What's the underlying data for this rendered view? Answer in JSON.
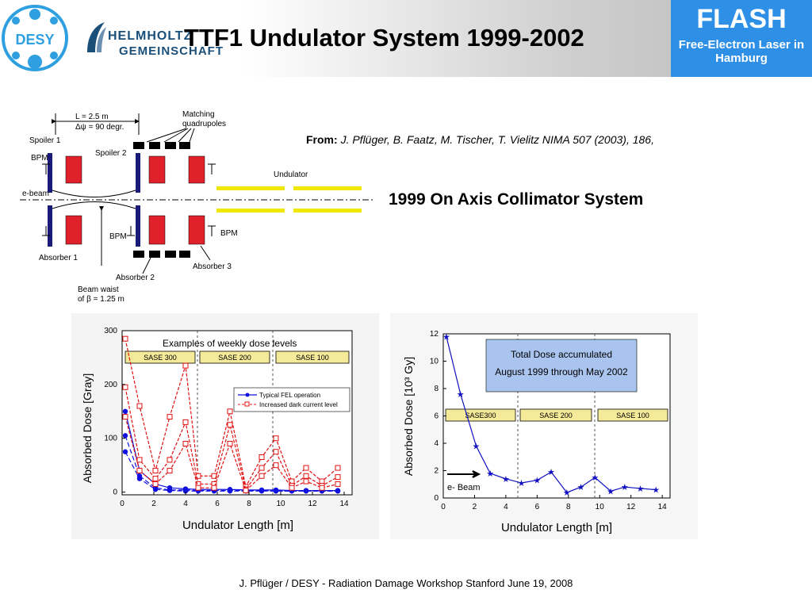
{
  "header": {
    "title": "TTF1 Undulator System 1999-2002",
    "desy_logo": "DESY",
    "helmholtz_line1": "HELMHOLTZ",
    "helmholtz_line2": "GEMEINSCHAFT",
    "flash_name": "FLASH",
    "flash_sub": "Free-Electron Laser in Hamburg",
    "colors": {
      "flash_bg": "#2e8fe6",
      "desy_blue": "#2e9fe0"
    }
  },
  "citation": {
    "label": "From:",
    "text": "J. Pflüger, B. Faatz, M. Tischer, T. Vielitz NIMA 507 (2003), 186,"
  },
  "subtitle": "1999 On Axis Collimator System",
  "schematic": {
    "length_label": "L = 2.5 m",
    "phase_label": "Δψ = 90 degr.",
    "matching_label_1": "Matching",
    "matching_label_2": "quadrupoles",
    "spoiler1": "Spoiler 1",
    "spoiler2": "Spoiler 2",
    "bpm": "BPM",
    "ebeam": "e-beam",
    "undulator": "Undulator",
    "absorber1": "Absorber 1",
    "absorber2": "Absorber 2",
    "absorber3": "Absorber 3",
    "waist_1": "Beam waist",
    "waist_2": "of β = 1.25 m"
  },
  "chart_data": [
    {
      "type": "line",
      "title": "Examples of weekly dose levels",
      "xlabel": "Undulator Length  [m]",
      "ylabel": "Absorbed Dose  [Gray]",
      "xlim": [
        0,
        14.5
      ],
      "ylim": [
        -5,
        300
      ],
      "xticks": [
        0,
        2,
        4,
        6,
        8,
        10,
        12,
        14
      ],
      "yticks": [
        0,
        100,
        200,
        300
      ],
      "bands": [
        "SASE 300",
        "SASE 200",
        "SASE 100"
      ],
      "legend": "top-right",
      "series": [
        {
          "name": "Typical FEL operation",
          "color": "#1010e0",
          "style": "solid-dots",
          "x": [
            0.2,
            1.1,
            2.1,
            3.0,
            4.0,
            4.8,
            5.8,
            6.8,
            7.8,
            8.8,
            9.7,
            10.7,
            11.6,
            12.6,
            13.6
          ],
          "y": [
            150,
            40,
            15,
            8,
            6,
            5,
            5,
            5,
            4,
            4,
            4,
            3,
            3,
            3,
            3
          ]
        },
        {
          "name": "",
          "color": "#1010e0",
          "style": "dash-dots",
          "x": [
            0.2,
            1.1,
            2.1,
            3.0,
            4.0,
            4.8,
            5.8,
            6.8,
            7.8,
            8.8,
            9.7,
            10.7,
            11.6,
            12.6,
            13.6
          ],
          "y": [
            105,
            30,
            8,
            4,
            4,
            3,
            3,
            3,
            3,
            3,
            2,
            2,
            2,
            2,
            2
          ]
        },
        {
          "name": "",
          "color": "#1010e0",
          "style": "dash-dots",
          "x": [
            0.2,
            1.1,
            2.1,
            3.0,
            4.0,
            4.8,
            5.8,
            6.8,
            7.8,
            8.8,
            9.7,
            10.7,
            11.6,
            12.6,
            13.6
          ],
          "y": [
            75,
            25,
            5,
            3,
            2,
            2,
            2,
            2,
            2,
            2,
            2,
            2,
            2,
            2,
            2
          ]
        },
        {
          "name": "Increased dark current level",
          "color": "#e01010",
          "style": "dash-squares",
          "x": [
            0.2,
            1.1,
            2.1,
            3.0,
            4.0,
            4.8,
            5.8,
            6.8,
            7.8,
            8.8,
            9.7,
            10.7,
            11.6,
            12.6,
            13.6
          ],
          "y": [
            285,
            160,
            40,
            140,
            235,
            30,
            30,
            150,
            10,
            65,
            100,
            20,
            45,
            20,
            45
          ]
        },
        {
          "name": "",
          "color": "#e01010",
          "style": "dash-squares",
          "x": [
            0.2,
            1.1,
            2.1,
            3.0,
            4.0,
            4.8,
            5.8,
            6.8,
            7.8,
            8.8,
            9.7,
            10.7,
            11.6,
            12.6,
            13.6
          ],
          "y": [
            195,
            60,
            25,
            60,
            130,
            15,
            15,
            125,
            5,
            45,
            75,
            12,
            30,
            12,
            28
          ]
        },
        {
          "name": "",
          "color": "#e01010",
          "style": "dash-squares",
          "x": [
            0.2,
            1.1,
            2.1,
            3.0,
            4.0,
            4.8,
            5.8,
            6.8,
            7.8,
            8.8,
            9.7,
            10.7,
            11.6,
            12.6,
            13.6
          ],
          "y": [
            140,
            40,
            15,
            40,
            90,
            8,
            8,
            90,
            3,
            30,
            50,
            8,
            20,
            8,
            15
          ]
        }
      ]
    },
    {
      "type": "line",
      "title": "",
      "annotation": "Total Dose accumulated August 1999 through May 2002",
      "annotation_line1": "Total Dose accumulated",
      "annotation_line2": "August 1999 through May 2002",
      "beam_label": "e- Beam",
      "xlabel": "Undulator Length  [m]",
      "ylabel": "Absorbed Dose  [10³ Gy]",
      "xlim": [
        0,
        14.5
      ],
      "ylim": [
        0,
        12
      ],
      "xticks": [
        0,
        2,
        4,
        6,
        8,
        10,
        12,
        14
      ],
      "yticks": [
        0,
        2,
        4,
        6,
        8,
        10,
        12
      ],
      "bands": [
        "SASE300",
        "SASE 200",
        "SASE 100"
      ],
      "series": [
        {
          "name": "",
          "color": "#1010c0",
          "style": "solid-stars",
          "x": [
            0.2,
            1.1,
            2.1,
            3.0,
            4.0,
            5.0,
            6.0,
            6.9,
            7.9,
            8.8,
            9.7,
            10.7,
            11.6,
            12.6,
            13.6
          ],
          "y": [
            11.8,
            7.6,
            3.8,
            1.8,
            1.4,
            1.1,
            1.3,
            1.9,
            0.4,
            0.8,
            1.5,
            0.5,
            0.8,
            0.7,
            0.6
          ]
        }
      ]
    }
  ],
  "footer": "J. Pflüger / DESY  - Radiation Damage Workshop Stanford June 19, 2008"
}
